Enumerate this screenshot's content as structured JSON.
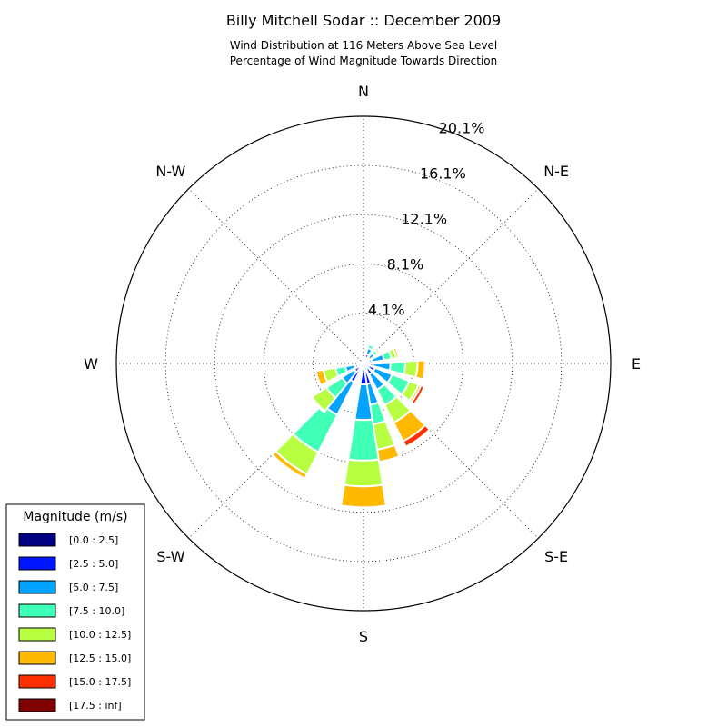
{
  "chart_data": {
    "type": "windrose",
    "title": "Billy Mitchell Sodar :: December 2009",
    "subtitle_lines": [
      "Wind Distribution at 116 Meters Above Sea Level",
      "Percentage of Wind Magnitude Towards Direction"
    ],
    "direction_labels": [
      {
        "name": "N",
        "angle_deg": 0
      },
      {
        "name": "N-E",
        "angle_deg": 45
      },
      {
        "name": "E",
        "angle_deg": 90
      },
      {
        "name": "S-E",
        "angle_deg": 135
      },
      {
        "name": "S",
        "angle_deg": 180
      },
      {
        "name": "S-W",
        "angle_deg": 225
      },
      {
        "name": "W",
        "angle_deg": 270
      },
      {
        "name": "N-W",
        "angle_deg": 315
      }
    ],
    "radial_max": 20.1,
    "radial_ticks": [
      4.1,
      8.1,
      12.1,
      16.1,
      20.1
    ],
    "radial_tick_labels": [
      "4.1%",
      "8.1%",
      "12.1%",
      "16.1%",
      "20.1%"
    ],
    "grid": true,
    "legend": {
      "title": "Magnitude (m/s)",
      "position": "bottom-left",
      "bins": [
        {
          "label": "[0.0 : 2.5]",
          "color": "#000080"
        },
        {
          "label": "[2.5 : 5.0]",
          "color": "#0015ff"
        },
        {
          "label": "[5.0 : 7.5]",
          "color": "#00a4ff"
        },
        {
          "label": "[7.5 : 10.0]",
          "color": "#40ffb7"
        },
        {
          "label": "[10.0 : 12.5]",
          "color": "#b7ff40"
        },
        {
          "label": "[12.5 : 15.0]",
          "color": "#ffb900"
        },
        {
          "label": "[15.0 : 17.5]",
          "color": "#ff3000"
        },
        {
          "label": "[17.5 : inf]",
          "color": "#800000"
        }
      ]
    },
    "sector_width_deg": 18,
    "sectors": [
      {
        "direction_deg": 24,
        "values": [
          0.3,
          0.5,
          0.5,
          0.3,
          0.1,
          0,
          0,
          0
        ]
      },
      {
        "direction_deg": 48,
        "values": [
          0.2,
          0.4,
          0.5,
          0.3,
          0.2,
          0,
          0,
          0
        ]
      },
      {
        "direction_deg": 72,
        "values": [
          0.2,
          0.5,
          1.0,
          0.6,
          0.4,
          0.2,
          0,
          0
        ]
      },
      {
        "direction_deg": 96,
        "values": [
          0.2,
          0.6,
          1.4,
          1.2,
          1.0,
          0.6,
          0,
          0
        ]
      },
      {
        "direction_deg": 120,
        "values": [
          0.2,
          0.8,
          1.5,
          1.5,
          0.8,
          0.2,
          0.3,
          0.1
        ]
      },
      {
        "direction_deg": 144,
        "values": [
          0.2,
          0.8,
          1.4,
          1.4,
          1.6,
          1.7,
          0.5,
          0
        ]
      },
      {
        "direction_deg": 168,
        "values": [
          0.3,
          1.4,
          1.7,
          1.6,
          2.1,
          1.0,
          0,
          0
        ]
      },
      {
        "direction_deg": 180,
        "values": [
          0.3,
          1.4,
          2.9,
          3.3,
          2.1,
          1.7,
          0,
          0
        ]
      },
      {
        "direction_deg": 216,
        "values": [
          0.3,
          1.4,
          3.0,
          3.4,
          2.0,
          0.4,
          0,
          0
        ]
      },
      {
        "direction_deg": 228,
        "values": [
          0.3,
          0.6,
          1.2,
          1.5,
          1.4,
          0.1,
          0,
          0
        ]
      },
      {
        "direction_deg": 252,
        "values": [
          0.2,
          0.5,
          0.8,
          0.8,
          1.0,
          0.6,
          0,
          0
        ]
      },
      {
        "direction_deg": 276,
        "values": [
          0.1,
          0.1,
          0.1,
          0.1,
          0.1,
          0,
          0,
          0
        ]
      }
    ]
  }
}
